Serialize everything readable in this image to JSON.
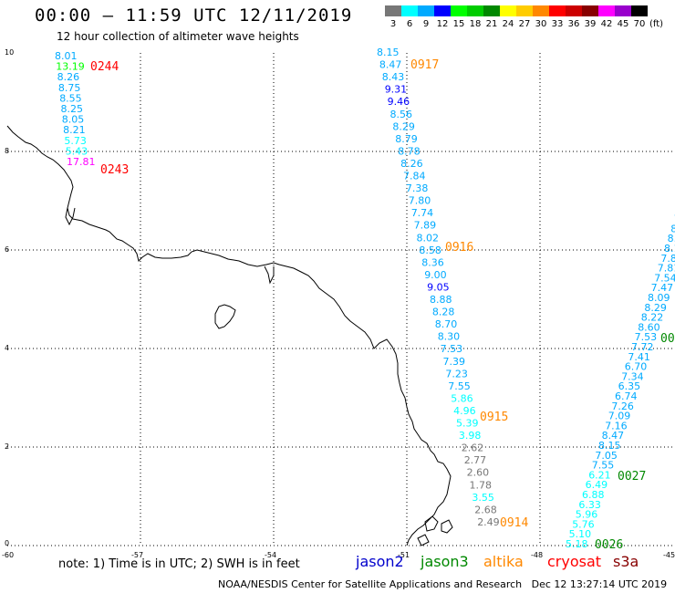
{
  "header": {
    "title": "00:00 – 11:59 UTC 12/11/2019",
    "subtitle": "12 hour collection of altimeter wave heights"
  },
  "colorbar": {
    "unit": "(ft)",
    "colors": [
      "#777777",
      "#00ffff",
      "#00aaff",
      "#0000ff",
      "#00ff00",
      "#00cc00",
      "#008800",
      "#ffff00",
      "#ffcc00",
      "#ff8800",
      "#ff0000",
      "#cc0000",
      "#880000",
      "#ff00ff",
      "#9900cc",
      "#000000"
    ],
    "labels": [
      "3",
      "6",
      "9",
      "12",
      "15",
      "18",
      "21",
      "24",
      "27",
      "30",
      "33",
      "36",
      "39",
      "42",
      "45",
      "70"
    ]
  },
  "axes": {
    "x_ticks": [
      "-60",
      "-57",
      "-54",
      "-51",
      "-48",
      "-45"
    ],
    "y_ticks": [
      "10",
      "8",
      "6",
      "4",
      "2",
      "0"
    ]
  },
  "tracks": [
    {
      "id": "track-west",
      "values": [
        "8.01",
        "13.19",
        "8.26",
        "8.75",
        "8.55",
        "8.25",
        "8.05",
        "8.21",
        "5.73",
        "5.43",
        "17.81"
      ],
      "colors": [
        "#00aaff",
        "#00ff00",
        "#00aaff",
        "#00aaff",
        "#00aaff",
        "#00aaff",
        "#00aaff",
        "#00aaff",
        "#00ffff",
        "#00ffff",
        "#ff00ff"
      ]
    },
    {
      "id": "track-middle",
      "values": [
        "8.15",
        "8.47",
        "8.43",
        "9.31",
        "9.46",
        "8.56",
        "8.29",
        "8.79",
        "8.78",
        "8.26",
        "7.84",
        "7.38",
        "7.80",
        "7.74",
        "7.89",
        "8.02",
        "8.58",
        "8.36",
        "9.00",
        "9.05",
        "8.88",
        "8.28",
        "8.70",
        "8.30",
        "7.53",
        "7.39",
        "7.23",
        "7.55",
        "5.86",
        "4.96",
        "5.39",
        "3.98",
        "2.62",
        "2.77",
        "2.60",
        "1.78",
        "3.55",
        "2.68",
        "2.49"
      ],
      "colors": [
        "#00aaff",
        "#00aaff",
        "#00aaff",
        "#0000ff",
        "#0000ff",
        "#00aaff",
        "#00aaff",
        "#00aaff",
        "#00aaff",
        "#00aaff",
        "#00aaff",
        "#00aaff",
        "#00aaff",
        "#00aaff",
        "#00aaff",
        "#00aaff",
        "#00aaff",
        "#00aaff",
        "#00aaff",
        "#0000ff",
        "#00aaff",
        "#00aaff",
        "#00aaff",
        "#00aaff",
        "#00aaff",
        "#00aaff",
        "#00aaff",
        "#00aaff",
        "#00ffff",
        "#00ffff",
        "#00ffff",
        "#00ffff",
        "#777777",
        "#777777",
        "#777777",
        "#777777",
        "#00ffff",
        "#777777",
        "#777777"
      ]
    },
    {
      "id": "track-east",
      "values": [
        "5.18",
        "5.10",
        "5.76",
        "5.96",
        "6.33",
        "6.88",
        "6.49",
        "6.21",
        "7.55",
        "7.05",
        "8.15",
        "8.47",
        "7.16",
        "7.09",
        "7.26",
        "6.74",
        "6.35",
        "7.34",
        "6.70",
        "7.41",
        "7.72",
        "7.53",
        "8.60",
        "8.22",
        "8.29",
        "8.09",
        "7.47",
        "7.54",
        "7.81",
        "7.86",
        "8.14",
        "8.2",
        "8.6",
        "7.",
        "8"
      ],
      "colors": [
        "#00ffff",
        "#00ffff",
        "#00ffff",
        "#00ffff",
        "#00ffff",
        "#00ffff",
        "#00ffff",
        "#00ffff",
        "#00aaff",
        "#00aaff",
        "#00aaff",
        "#00aaff",
        "#00aaff",
        "#00aaff",
        "#00aaff",
        "#00aaff",
        "#00aaff",
        "#00aaff",
        "#00aaff",
        "#00aaff",
        "#00aaff",
        "#00aaff",
        "#00aaff",
        "#00aaff",
        "#00aaff",
        "#00aaff",
        "#00aaff",
        "#00aaff",
        "#00aaff",
        "#00aaff",
        "#00aaff",
        "#00aaff",
        "#00aaff",
        "#00aaff",
        "#00aaff"
      ]
    }
  ],
  "time_labels": [
    {
      "text": "0244",
      "color": "#ff0000"
    },
    {
      "text": "0243",
      "color": "#ff0000"
    },
    {
      "text": "0917",
      "color": "#ff8800"
    },
    {
      "text": "0916",
      "color": "#ff8800"
    },
    {
      "text": "0915",
      "color": "#ff8800"
    },
    {
      "text": "0914",
      "color": "#ff8800"
    },
    {
      "text": "0027",
      "color": "#008800"
    },
    {
      "text": "0026",
      "color": "#008800"
    },
    {
      "text": "00",
      "color": "#008800"
    }
  ],
  "note": "note: 1) Time is in UTC; 2) SWH is in feet",
  "satellites": [
    {
      "name": "jason2",
      "color": "#0000cc"
    },
    {
      "name": "jason3",
      "color": "#008800"
    },
    {
      "name": "altika",
      "color": "#ff8800"
    },
    {
      "name": "cryosat",
      "color": "#ff0000"
    },
    {
      "name": "s3a",
      "color": "#880000"
    }
  ],
  "footer": {
    "credit": "NOAA/NESDIS Center for Satellite Applications and Research",
    "timestamp": "Dec 12 13:27:14 UTC 2019"
  }
}
